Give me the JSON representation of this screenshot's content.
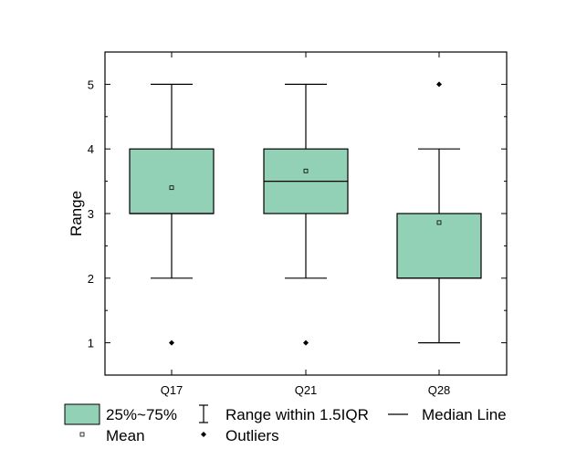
{
  "chart_data": {
    "type": "box",
    "ylabel": "Range",
    "xlabel": "",
    "ylim": [
      0.5,
      5.5
    ],
    "yticks": [
      1,
      2,
      3,
      4,
      5
    ],
    "grid": false,
    "legend_position": "bottom",
    "box_color": "#93d1b7",
    "categories": [
      "Q17",
      "Q21",
      "Q28"
    ],
    "boxes": [
      {
        "name": "Q17",
        "whisker_low": 2,
        "q1": 3,
        "median": 3,
        "q3": 4,
        "whisker_high": 5,
        "mean": 3.4,
        "outliers": [
          1
        ]
      },
      {
        "name": "Q21",
        "whisker_low": 2,
        "q1": 3,
        "median": 3.5,
        "q3": 4,
        "whisker_high": 5,
        "mean": 3.66,
        "outliers": [
          1
        ]
      },
      {
        "name": "Q28",
        "whisker_low": 1,
        "q1": 2,
        "median": 2,
        "q3": 3,
        "whisker_high": 4,
        "mean": 2.86,
        "outliers": [
          5
        ]
      }
    ],
    "legend": {
      "box": "25%~75%",
      "range": "Range within 1.5IQR",
      "median": "Median Line",
      "mean": "Mean",
      "outliers": "Outliers"
    }
  }
}
